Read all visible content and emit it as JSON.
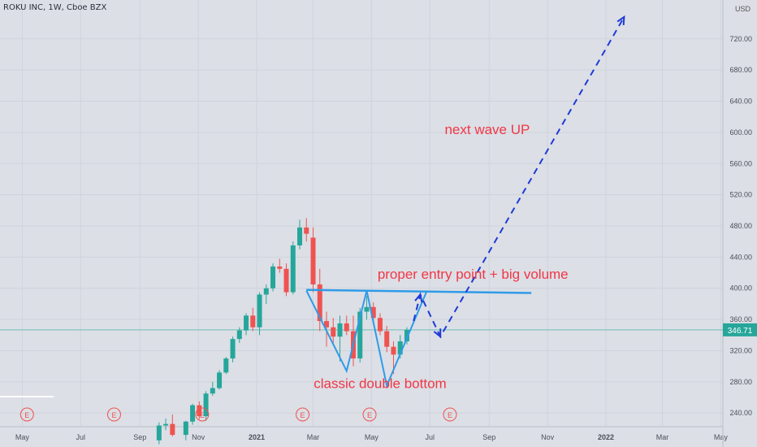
{
  "header": {
    "symbol_line": "ROKU INC, 1W, Cboe BZX"
  },
  "axis": {
    "currency_label": "USD"
  },
  "colors": {
    "background": "#dcdfe6",
    "up": "#26a69a",
    "down": "#ef5350",
    "annotation_blue": "#2f9be8",
    "dashed_blue": "#1e3ad6",
    "annotation_text": "#f23645",
    "price_badge": "#26a69a"
  },
  "chart_data": {
    "type": "candlestick",
    "ylim": [
      210,
      750
    ],
    "y_ticks": [
      240,
      280,
      320,
      360,
      400,
      440,
      480,
      520,
      560,
      600,
      640,
      680,
      720
    ],
    "y_tick_labels": [
      "240.00",
      "280.00",
      "320.00",
      "360.00",
      "400.00",
      "440.00",
      "480.00",
      "520.00",
      "560.00",
      "600.00",
      "640.00",
      "680.00",
      "720.00"
    ],
    "x_tick_labels": [
      "May",
      "Jul",
      "Sep",
      "Nov",
      "2021",
      "Mar",
      "May",
      "Jul",
      "Sep",
      "Nov",
      "2022",
      "Mar",
      "May"
    ],
    "earnings_marker": "E",
    "last_price": "346.71",
    "candles": [
      {
        "d": "2020-09-21",
        "o": 205,
        "h": 228,
        "l": 200,
        "c": 224
      },
      {
        "d": "2020-09-28",
        "o": 224,
        "h": 233,
        "l": 218,
        "c": 226
      },
      {
        "d": "2020-10-05",
        "o": 226,
        "h": 238,
        "l": 210,
        "c": 212
      },
      {
        "d": "2020-10-19",
        "o": 212,
        "h": 230,
        "l": 205,
        "c": 229
      },
      {
        "d": "2020-10-26",
        "o": 229,
        "h": 252,
        "l": 225,
        "c": 250
      },
      {
        "d": "2020-11-02",
        "o": 250,
        "h": 255,
        "l": 232,
        "c": 236
      },
      {
        "d": "2020-11-09",
        "o": 236,
        "h": 268,
        "l": 230,
        "c": 265
      },
      {
        "d": "2020-11-16",
        "o": 265,
        "h": 280,
        "l": 262,
        "c": 272
      },
      {
        "d": "2020-11-23",
        "o": 272,
        "h": 295,
        "l": 270,
        "c": 292
      },
      {
        "d": "2020-11-30",
        "o": 292,
        "h": 312,
        "l": 290,
        "c": 310
      },
      {
        "d": "2020-12-07",
        "o": 310,
        "h": 338,
        "l": 305,
        "c": 335
      },
      {
        "d": "2020-12-14",
        "o": 335,
        "h": 350,
        "l": 330,
        "c": 346
      },
      {
        "d": "2020-12-21",
        "o": 346,
        "h": 368,
        "l": 340,
        "c": 365
      },
      {
        "d": "2020-12-28",
        "o": 365,
        "h": 375,
        "l": 345,
        "c": 350
      },
      {
        "d": "2021-01-04",
        "o": 350,
        "h": 395,
        "l": 340,
        "c": 392
      },
      {
        "d": "2021-01-11",
        "o": 392,
        "h": 405,
        "l": 380,
        "c": 400
      },
      {
        "d": "2021-01-18",
        "o": 400,
        "h": 432,
        "l": 396,
        "c": 428
      },
      {
        "d": "2021-01-25",
        "o": 428,
        "h": 438,
        "l": 420,
        "c": 425
      },
      {
        "d": "2021-02-01",
        "o": 425,
        "h": 432,
        "l": 390,
        "c": 395
      },
      {
        "d": "2021-02-08",
        "o": 395,
        "h": 460,
        "l": 392,
        "c": 455
      },
      {
        "d": "2021-02-15",
        "o": 455,
        "h": 488,
        "l": 450,
        "c": 478
      },
      {
        "d": "2021-02-22",
        "o": 478,
        "h": 490,
        "l": 460,
        "c": 470
      },
      {
        "d": "2021-03-01",
        "o": 465,
        "h": 478,
        "l": 395,
        "c": 405
      },
      {
        "d": "2021-03-08",
        "o": 405,
        "h": 425,
        "l": 345,
        "c": 358
      },
      {
        "d": "2021-03-15",
        "o": 358,
        "h": 370,
        "l": 325,
        "c": 350
      },
      {
        "d": "2021-03-22",
        "o": 350,
        "h": 362,
        "l": 328,
        "c": 338
      },
      {
        "d": "2021-03-29",
        "o": 338,
        "h": 365,
        "l": 306,
        "c": 355
      },
      {
        "d": "2021-04-05",
        "o": 355,
        "h": 365,
        "l": 340,
        "c": 345
      },
      {
        "d": "2021-04-12",
        "o": 345,
        "h": 365,
        "l": 300,
        "c": 310
      },
      {
        "d": "2021-04-19",
        "o": 310,
        "h": 375,
        "l": 305,
        "c": 370
      },
      {
        "d": "2021-04-26",
        "o": 370,
        "h": 390,
        "l": 360,
        "c": 376
      },
      {
        "d": "2021-05-03",
        "o": 376,
        "h": 382,
        "l": 355,
        "c": 362
      },
      {
        "d": "2021-05-10",
        "o": 362,
        "h": 368,
        "l": 340,
        "c": 345
      },
      {
        "d": "2021-05-17",
        "o": 345,
        "h": 352,
        "l": 318,
        "c": 325
      },
      {
        "d": "2021-05-24",
        "o": 325,
        "h": 332,
        "l": 290,
        "c": 315
      },
      {
        "d": "2021-05-31",
        "o": 315,
        "h": 340,
        "l": 310,
        "c": 332
      },
      {
        "d": "2021-06-07",
        "o": 332,
        "h": 350,
        "l": 328,
        "c": 346.71
      }
    ],
    "annotations": [
      {
        "id": "neckline",
        "kind": "line",
        "points": [
          [
            "2021-02-22",
            398
          ],
          [
            "2021-10-15",
            394
          ]
        ]
      },
      {
        "id": "double-bottom-path",
        "kind": "polyline",
        "points": [
          [
            "2021-02-22",
            397
          ],
          [
            "2021-04-05",
            294
          ],
          [
            "2021-04-26",
            397
          ],
          [
            "2021-05-17",
            275
          ],
          [
            "2021-06-28",
            397
          ]
        ]
      },
      {
        "id": "projection",
        "kind": "dashed-arrow",
        "points": [
          [
            "2021-06-14",
            358
          ],
          [
            "2021-06-21",
            392
          ],
          [
            "2021-07-12",
            338
          ],
          [
            "2022-01-20",
            748
          ]
        ]
      }
    ],
    "labels": [
      {
        "text": "next wave UP",
        "at": [
          "2021-08-30",
          598
        ]
      },
      {
        "text": "proper entry point + big volume",
        "at": [
          "2021-08-15",
          412
        ]
      },
      {
        "text": "classic double bottom",
        "at": [
          "2021-05-10",
          272
        ]
      }
    ],
    "earnings_dates": [
      "2020-05-06",
      "2020-08-05",
      "2020-11-05",
      "2021-02-18",
      "2021-04-29",
      "2021-07-22"
    ]
  }
}
